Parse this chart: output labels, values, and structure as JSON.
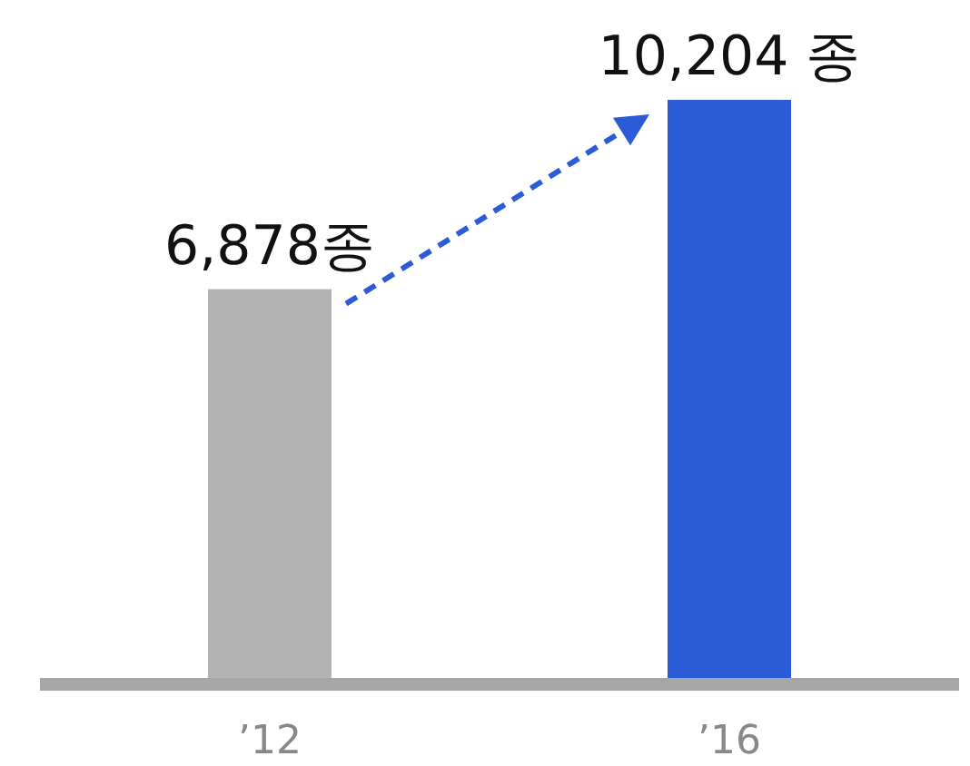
{
  "chart_data": {
    "type": "bar",
    "categories": [
      "’12",
      "’16"
    ],
    "values": [
      6878,
      10204
    ],
    "colors": [
      "#b3b3b3",
      "#2b5bd7"
    ],
    "value_labels": [
      "6,878종",
      "10,204 종"
    ]
  }
}
